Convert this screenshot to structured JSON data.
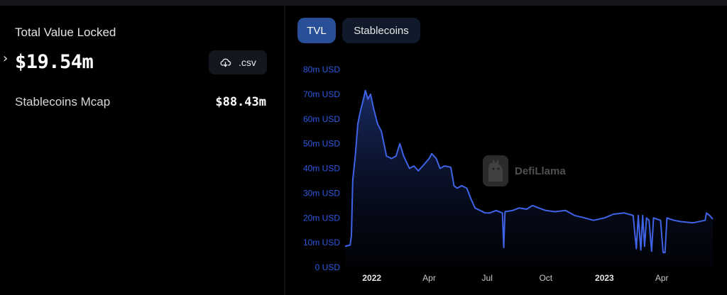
{
  "summary": {
    "tvl_label": "Total Value Locked",
    "tvl_value": "$19.54m",
    "csv_label": ".csv",
    "stablecoins_label": "Stablecoins Mcap",
    "stablecoins_value": "$88.43m"
  },
  "tabs": [
    {
      "label": "TVL",
      "active": true
    },
    {
      "label": "Stablecoins",
      "active": false
    }
  ],
  "icons": {
    "expand": "chevron-right-icon",
    "download": "cloud-download-icon",
    "watermark": "llama-logo-icon"
  },
  "watermark": "DefiLlama",
  "colors": {
    "line": "#3f63e6",
    "active_tab": "#2a4f99",
    "axis_label": "#2e59e0"
  },
  "chart_data": {
    "type": "area",
    "y_tick_labels": [
      "0 USD",
      "10m USD",
      "20m USD",
      "30m USD",
      "40m USD",
      "50m USD",
      "60m USD",
      "70m USD",
      "80m USD"
    ],
    "ylim": [
      0,
      80
    ],
    "y_unit": "m USD",
    "x_tick_labels": [
      {
        "label": "2022",
        "bold": true,
        "date": "2022-01-01"
      },
      {
        "label": "Apr",
        "bold": false,
        "date": "2022-04-01"
      },
      {
        "label": "Jul",
        "bold": false,
        "date": "2022-07-01"
      },
      {
        "label": "Oct",
        "bold": false,
        "date": "2022-10-01"
      },
      {
        "label": "2023",
        "bold": true,
        "date": "2023-01-01"
      },
      {
        "label": "Apr",
        "bold": false,
        "date": "2023-04-01"
      }
    ],
    "xlim": [
      "2021-11-20",
      "2023-06-20"
    ],
    "series": [
      {
        "name": "TVL",
        "points": [
          [
            "2021-11-20",
            8.5
          ],
          [
            "2021-11-28",
            9.0
          ],
          [
            "2021-11-30",
            13.0
          ],
          [
            "2021-12-02",
            35.0
          ],
          [
            "2021-12-06",
            45.0
          ],
          [
            "2021-12-10",
            58.0
          ],
          [
            "2021-12-14",
            63.0
          ],
          [
            "2021-12-18",
            67.0
          ],
          [
            "2021-12-22",
            71.5
          ],
          [
            "2021-12-26",
            68.0
          ],
          [
            "2021-12-30",
            70.0
          ],
          [
            "2022-01-04",
            64.0
          ],
          [
            "2022-01-10",
            58.0
          ],
          [
            "2022-01-16",
            55.0
          ],
          [
            "2022-01-20",
            50.0
          ],
          [
            "2022-01-24",
            45.0
          ],
          [
            "2022-02-01",
            44.0
          ],
          [
            "2022-02-08",
            45.0
          ],
          [
            "2022-02-14",
            50.0
          ],
          [
            "2022-02-20",
            45.0
          ],
          [
            "2022-03-01",
            40.0
          ],
          [
            "2022-03-08",
            41.0
          ],
          [
            "2022-03-15",
            39.0
          ],
          [
            "2022-03-22",
            41.0
          ],
          [
            "2022-04-01",
            44.0
          ],
          [
            "2022-04-05",
            46.0
          ],
          [
            "2022-04-12",
            44.0
          ],
          [
            "2022-04-18",
            40.0
          ],
          [
            "2022-04-25",
            41.0
          ],
          [
            "2022-05-05",
            40.5
          ],
          [
            "2022-05-10",
            33.0
          ],
          [
            "2022-05-15",
            32.0
          ],
          [
            "2022-05-22",
            33.0
          ],
          [
            "2022-05-30",
            32.0
          ],
          [
            "2022-06-05",
            28.0
          ],
          [
            "2022-06-12",
            24.0
          ],
          [
            "2022-06-20",
            23.0
          ],
          [
            "2022-06-28",
            22.0
          ],
          [
            "2022-07-05",
            22.0
          ],
          [
            "2022-07-15",
            23.0
          ],
          [
            "2022-07-25",
            22.0
          ],
          [
            "2022-07-27",
            8.0
          ],
          [
            "2022-07-29",
            22.5
          ],
          [
            "2022-08-10",
            23.0
          ],
          [
            "2022-08-20",
            24.0
          ],
          [
            "2022-09-01",
            23.5
          ],
          [
            "2022-09-10",
            25.0
          ],
          [
            "2022-09-20",
            24.0
          ],
          [
            "2022-10-01",
            23.0
          ],
          [
            "2022-10-15",
            22.5
          ],
          [
            "2022-11-01",
            23.0
          ],
          [
            "2022-11-15",
            21.0
          ],
          [
            "2022-12-01",
            20.0
          ],
          [
            "2022-12-15",
            19.0
          ],
          [
            "2023-01-01",
            20.0
          ],
          [
            "2023-01-15",
            21.5
          ],
          [
            "2023-02-01",
            22.0
          ],
          [
            "2023-02-15",
            21.0
          ],
          [
            "2023-02-20",
            7.5
          ],
          [
            "2023-02-23",
            21.0
          ],
          [
            "2023-02-27",
            7.0
          ],
          [
            "2023-03-02",
            21.0
          ],
          [
            "2023-03-05",
            8.5
          ],
          [
            "2023-03-08",
            20.0
          ],
          [
            "2023-03-12",
            19.0
          ],
          [
            "2023-03-16",
            6.5
          ],
          [
            "2023-03-19",
            20.0
          ],
          [
            "2023-03-30",
            19.0
          ],
          [
            "2023-04-03",
            6.0
          ],
          [
            "2023-04-06",
            6.0
          ],
          [
            "2023-04-09",
            20.0
          ],
          [
            "2023-04-20",
            19.0
          ],
          [
            "2023-05-01",
            18.5
          ],
          [
            "2023-05-20",
            18.0
          ],
          [
            "2023-06-08",
            19.0
          ],
          [
            "2023-06-10",
            22.0
          ],
          [
            "2023-06-15",
            21.0
          ],
          [
            "2023-06-20",
            19.54
          ]
        ]
      }
    ]
  }
}
